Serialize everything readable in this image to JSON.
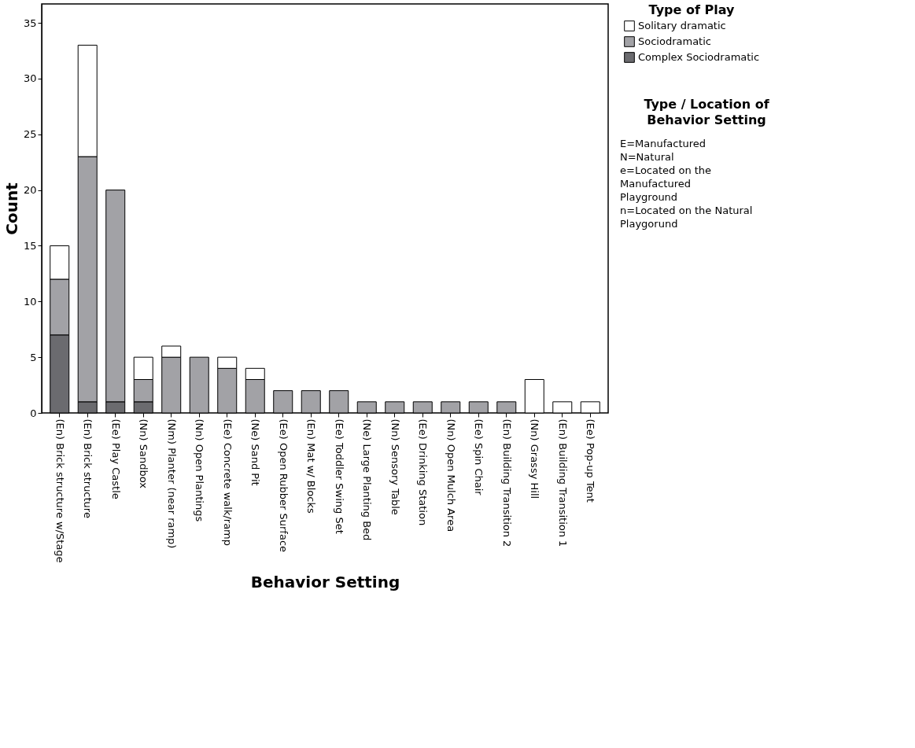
{
  "chart_data": {
    "type": "bar",
    "stacked": true,
    "xlabel": "Behavior Setting",
    "ylabel": "Count",
    "legend_title": "Type of Play",
    "legend": "right",
    "grid": false,
    "categories": [
      "(En) Brick structure w/Stage",
      "(En) Brick structure",
      "(Ee) Play Castle",
      "(Nn) Sandbox",
      "(Nm) Planter (near ramp)",
      "(Nn) Open Plantings",
      "(Ee) Concrete walk/ramp",
      "(Ne) Sand Pit",
      "(Ee) Open Rubber Surface",
      "(En) Mat w/ Blocks",
      "(Ee) Toddler Swing Set",
      "(Ne) Large Planting Bed",
      "(Nn) Sensory Table",
      "(Ee) Drinking Station",
      "(Nn) Open Mulch Area",
      "(Ee) Spin Chair",
      "(En) Building Transition 2",
      "(Nn) Grassy Hill",
      "(En) Building Transition 1",
      "(Ee) Pop-up Tent"
    ],
    "series": [
      {
        "name": "Complex Sociodramatic",
        "color": "#6b6b6f",
        "values": [
          7,
          1,
          1,
          1,
          0,
          0,
          0,
          0,
          0,
          0,
          0,
          0,
          0,
          0,
          0,
          0,
          0,
          0,
          0,
          0
        ]
      },
      {
        "name": "Sociodramatic",
        "color": "#a2a2a6",
        "values": [
          5,
          22,
          19,
          2,
          5,
          5,
          4,
          3,
          2,
          2,
          2,
          1,
          1,
          1,
          1,
          1,
          1,
          0,
          0,
          0
        ]
      },
      {
        "name": "Solitary dramatic",
        "color": "#ffffff",
        "values": [
          3,
          10,
          0,
          2,
          1,
          0,
          1,
          1,
          0,
          0,
          0,
          0,
          0,
          0,
          0,
          0,
          0,
          3,
          1,
          1
        ]
      }
    ],
    "ylim": [
      0,
      36.7
    ],
    "yticks": [
      0,
      5,
      10,
      15,
      20,
      25,
      30,
      35
    ],
    "annotations": [
      "Type / Location of Behavior Setting",
      "E=Manufactured",
      "N=Natural",
      "e=Located on the Manufactured Playground",
      "n=Located on the Natural Playgorund"
    ]
  }
}
